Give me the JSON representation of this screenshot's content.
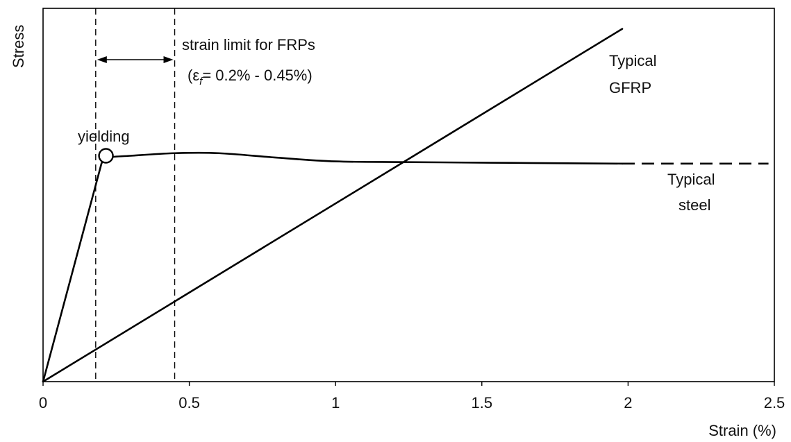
{
  "chart_data": {
    "type": "line",
    "xlabel": "Strain (%)",
    "ylabel": "Stress",
    "xlim": [
      0,
      2.5
    ],
    "ylim": [
      0,
      1
    ],
    "xticks": [
      0,
      0.5,
      1,
      1.5,
      2,
      2.5
    ],
    "xtick_labels": [
      "0",
      "0.5",
      "1",
      "1.5",
      "2",
      "2.5"
    ],
    "grid": false,
    "series": [
      {
        "name": "Typical GFRP",
        "label_lines": [
          "Typical",
          "GFRP"
        ],
        "x": [
          0,
          1.98
        ],
        "y": [
          0,
          0.945
        ]
      },
      {
        "name": "Typical steel",
        "label_lines": [
          "Typical",
          "steel"
        ],
        "x": [
          0,
          0.2,
          0.22,
          0.3,
          0.45,
          0.6,
          0.8,
          1.0,
          1.25,
          1.6,
          1.98
        ],
        "y": [
          0,
          0.585,
          0.6,
          0.605,
          0.612,
          0.612,
          0.6,
          0.59,
          0.588,
          0.586,
          0.584
        ],
        "dashed_extension": {
          "x": [
            1.98,
            2.48
          ],
          "y": [
            0.584,
            0.584
          ]
        }
      }
    ],
    "vertical_lines": [
      0.18,
      0.45
    ],
    "annotations": {
      "yielding": "yielding",
      "yield_point": {
        "x": 0.215,
        "y": 0.605
      },
      "strain_limit_title": "strain limit for FRPs",
      "strain_limit_range": "(εf= 0.2% - 0.45%)",
      "range_open": "(ε",
      "range_sub": "f",
      "range_rest": "= 0.2% - 0.45%)"
    }
  }
}
